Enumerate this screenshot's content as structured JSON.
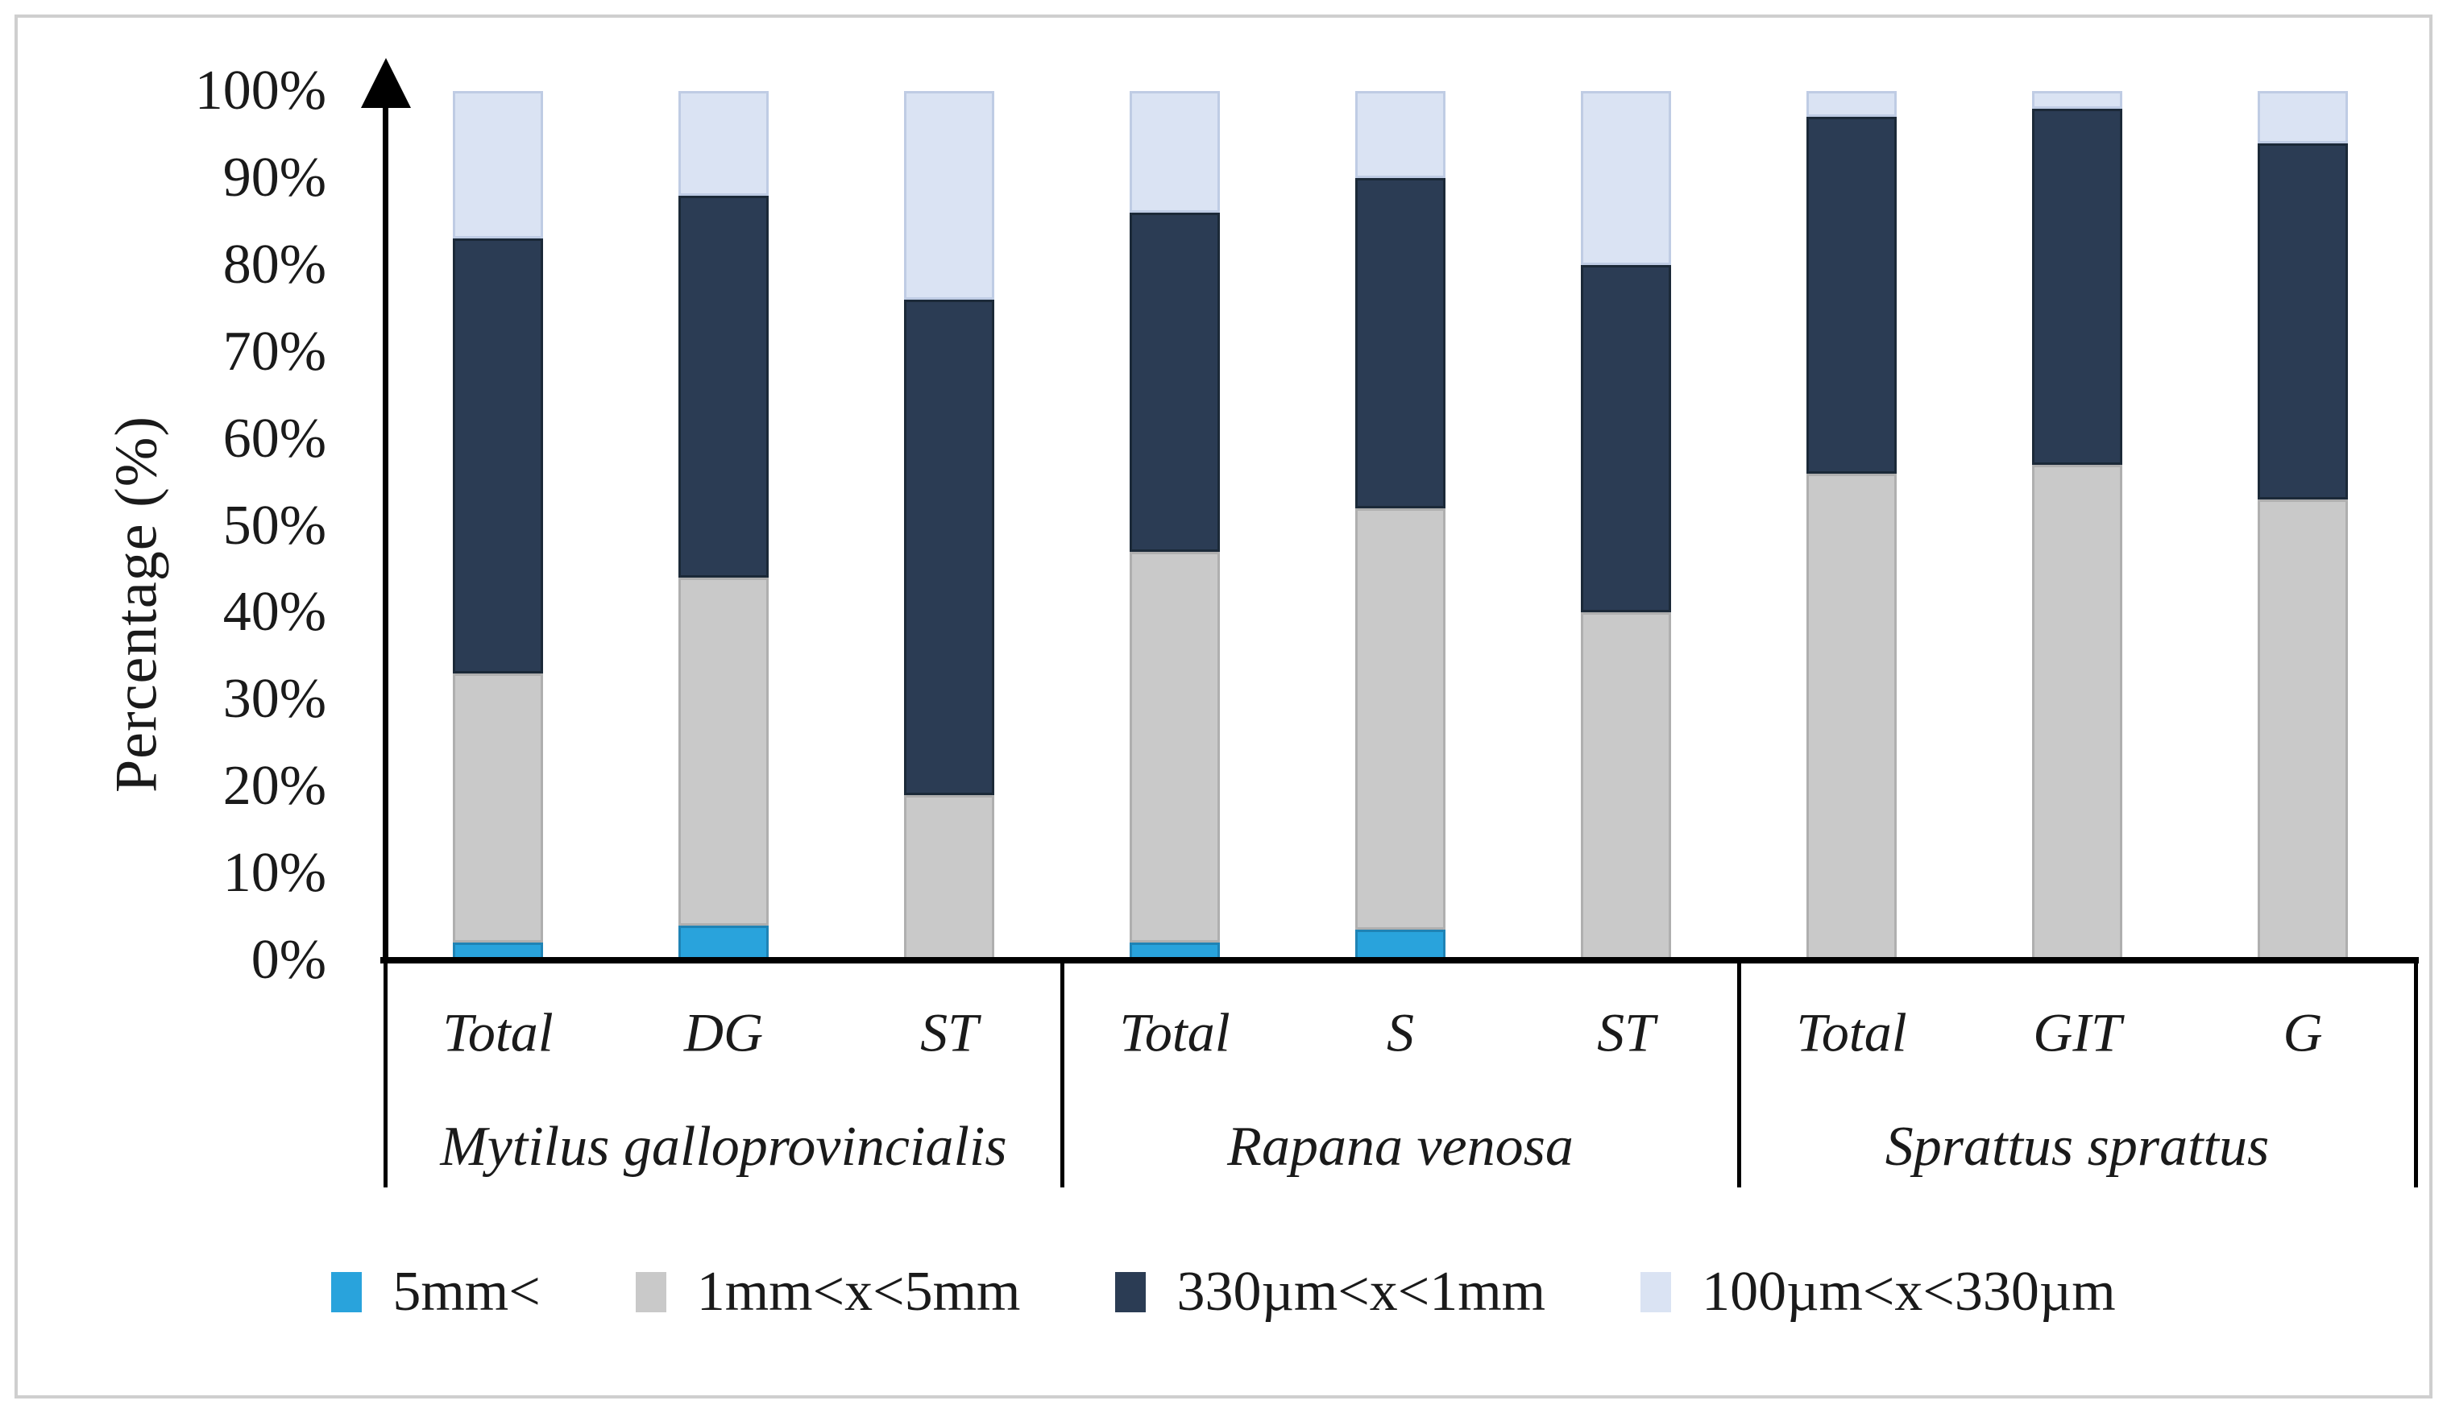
{
  "figure": {
    "background": "#FFFFFF",
    "border_color": "#CFCFCF",
    "text_color": "#1A1A1A"
  },
  "chart_data": {
    "type": "bar",
    "subtype": "stacked-100-percent",
    "title": "",
    "xlabel": "",
    "ylabel": "Percentage (%)",
    "ylim": [
      0,
      100
    ],
    "grid": false,
    "legend_position": "bottom",
    "y_ticks": [
      "100%",
      "90%",
      "80%",
      "70%",
      "60%",
      "50%",
      "40%",
      "30%",
      "20%",
      "10%",
      "0%"
    ],
    "series": [
      {
        "name": "5mm<",
        "color": "#29A3DC",
        "border": "#1F83B5"
      },
      {
        "name": "1mm<x<5mm",
        "color": "#C9C9C9",
        "border": "#AFAFAF"
      },
      {
        "name": "330µm<x<1mm",
        "color": "#2B3C54",
        "border": "#1B2938"
      },
      {
        "name": "100µm<x<330µm",
        "color": "#DAE3F3",
        "border": "#BFCCE4"
      }
    ],
    "stack_order_note": "values arrays are bottom-to-top per bar, matching series order",
    "groups": [
      {
        "label": "Mytilus galloprovincialis",
        "categories": [
          "Total",
          "DG",
          "ST"
        ],
        "values": [
          [
            2,
            31,
            50,
            17
          ],
          [
            4,
            40,
            44,
            12
          ],
          [
            0,
            19,
            57,
            24
          ]
        ]
      },
      {
        "label": "Rapana venosa",
        "categories": [
          "Total",
          "S",
          "ST"
        ],
        "values": [
          [
            2,
            45,
            39,
            14
          ],
          [
            3.5,
            48.5,
            38,
            10
          ],
          [
            0,
            40,
            40,
            20
          ]
        ]
      },
      {
        "label": "Sprattus sprattus",
        "categories": [
          "Total",
          "GIT",
          "G"
        ],
        "values": [
          [
            0,
            56,
            41,
            3
          ],
          [
            0,
            57,
            41,
            2
          ],
          [
            0,
            53,
            41,
            6
          ]
        ]
      }
    ]
  }
}
